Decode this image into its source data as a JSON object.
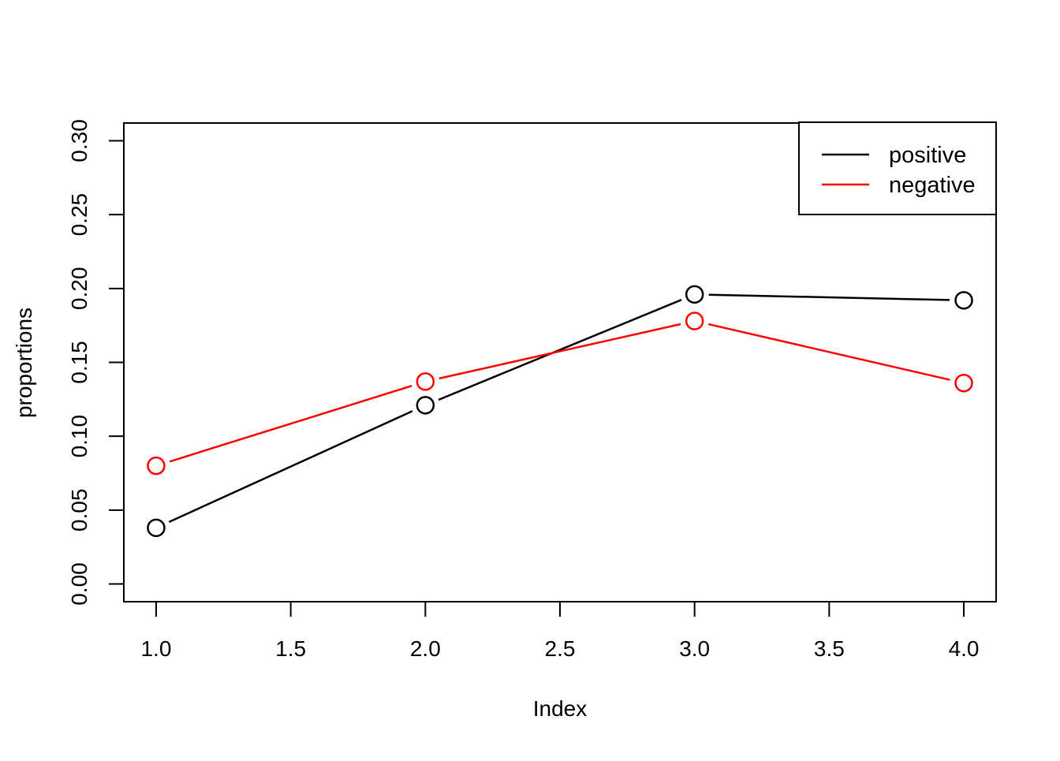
{
  "chart_data": {
    "type": "line",
    "title": "",
    "xlabel": "Index",
    "ylabel": "proportions",
    "x": [
      1,
      2,
      3,
      4
    ],
    "series": [
      {
        "name": "positive",
        "color": "#000000",
        "values": [
          0.038,
          0.121,
          0.196,
          0.192
        ]
      },
      {
        "name": "negative",
        "color": "#FF0000",
        "values": [
          0.08,
          0.137,
          0.178,
          0.136
        ]
      }
    ],
    "marker": "open-circle",
    "line_style": "segments-with-gaps-at-points",
    "xlim": [
      0.88,
      4.12
    ],
    "ylim": [
      -0.012,
      0.312
    ],
    "x_ticks": {
      "values": [
        1.0,
        1.5,
        2.0,
        2.5,
        3.0,
        3.5,
        4.0
      ],
      "labels": [
        "1.0",
        "1.5",
        "2.0",
        "2.5",
        "3.0",
        "3.5",
        "4.0"
      ]
    },
    "y_ticks": {
      "values": [
        0.0,
        0.05,
        0.1,
        0.15,
        0.2,
        0.25,
        0.3
      ],
      "labels": [
        "0.00",
        "0.05",
        "0.10",
        "0.15",
        "0.20",
        "0.25",
        "0.30"
      ]
    },
    "grid": false,
    "frame_color": "#000000",
    "background_color": "#ffffff",
    "legend": {
      "position": "topright",
      "border": true,
      "entries": [
        {
          "label": "positive",
          "color": "#000000"
        },
        {
          "label": "negative",
          "color": "#FF0000"
        }
      ]
    }
  }
}
